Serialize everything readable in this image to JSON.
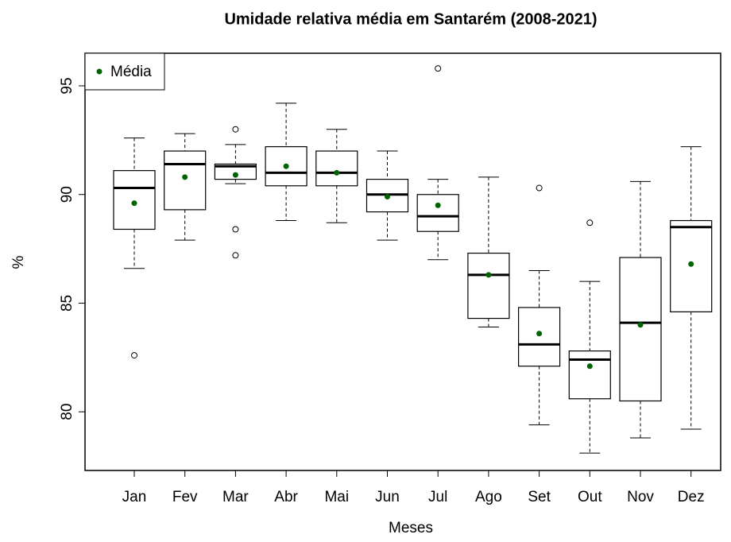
{
  "chart_data": {
    "type": "box",
    "title": "Umidade relativa média em Santarém (2008-2021)",
    "x_label": "Meses",
    "y_label": "%",
    "categories": [
      "Jan",
      "Fev",
      "Mar",
      "Abr",
      "Mai",
      "Jun",
      "Jul",
      "Ago",
      "Set",
      "Out",
      "Nov",
      "Dez"
    ],
    "whisker_low": [
      86.6,
      87.9,
      90.5,
      88.8,
      88.7,
      87.9,
      87.0,
      83.9,
      79.4,
      78.1,
      78.8,
      79.2
    ],
    "q1": [
      88.4,
      89.3,
      90.7,
      90.4,
      90.4,
      89.2,
      88.3,
      84.3,
      82.1,
      80.6,
      80.5,
      84.6
    ],
    "median": [
      90.3,
      91.4,
      91.3,
      91.0,
      91.0,
      90.0,
      89.0,
      86.3,
      83.1,
      82.4,
      84.1,
      88.5
    ],
    "q3": [
      91.1,
      92.0,
      91.4,
      92.2,
      92.0,
      90.7,
      90.0,
      87.3,
      84.8,
      82.8,
      87.1,
      88.8
    ],
    "whisker_high": [
      92.6,
      92.8,
      92.3,
      94.2,
      93.0,
      92.0,
      90.7,
      90.8,
      86.5,
      86.0,
      90.6,
      92.2
    ],
    "outliers": [
      [
        82.6
      ],
      [],
      [
        93.0,
        88.4,
        87.2
      ],
      [],
      [],
      [],
      [
        95.8
      ],
      [],
      [
        90.3
      ],
      [
        88.7
      ],
      [],
      []
    ],
    "mean_name": "Média",
    "mean_color": "#006400",
    "means": [
      89.6,
      90.8,
      90.9,
      91.3,
      91.0,
      89.9,
      89.5,
      86.3,
      83.6,
      82.1,
      84.0,
      86.8
    ],
    "ylim": [
      77.3,
      96.5
    ],
    "yticks": [
      80,
      85,
      90,
      95
    ],
    "legend": "top-left"
  }
}
